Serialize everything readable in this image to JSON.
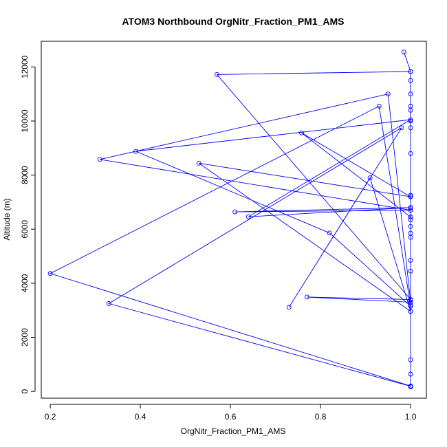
{
  "chart_data": {
    "type": "line",
    "title": "ATOM3 Northbound OrgNitr_Fraction_PM1_AMS",
    "xlabel": "OrgNitr_Fraction_PM1_AMS",
    "ylabel": "Altitude (m)",
    "xlim": [
      0.18,
      1.035
    ],
    "ylim": [
      -250,
      12950
    ],
    "xticks": [
      0.2,
      0.4,
      0.6,
      0.8,
      1.0
    ],
    "xtick_labels": [
      "0.2",
      "0.4",
      "0.6",
      "0.8",
      "1.0"
    ],
    "yticks": [
      0,
      2000,
      4000,
      6000,
      8000,
      10000,
      12000
    ],
    "ytick_labels": [
      "0",
      "2000",
      "4000",
      "6000",
      "8000",
      "10000",
      "12000"
    ],
    "grid": false,
    "colors": {
      "series": "#0000ff",
      "axis": "#000000"
    },
    "series": [
      {
        "points": [
          [
            1.0,
            170
          ],
          [
            1.0,
            640
          ],
          [
            1.0,
            1170
          ],
          [
            1.0,
            2960
          ],
          [
            1.0,
            3200
          ],
          [
            1.0,
            3380
          ],
          [
            1.0,
            4450
          ],
          [
            1.0,
            4850
          ],
          [
            1.0,
            5700
          ],
          [
            1.0,
            5850
          ],
          [
            1.0,
            6100
          ],
          [
            1.0,
            6350
          ],
          [
            1.0,
            6450
          ],
          [
            1.0,
            6780
          ],
          [
            1.0,
            7200
          ],
          [
            1.0,
            7250
          ],
          [
            1.0,
            8800
          ],
          [
            1.0,
            9750
          ],
          [
            1.0,
            10000
          ],
          [
            1.0,
            10400
          ],
          [
            1.0,
            10550
          ],
          [
            1.0,
            11000
          ],
          [
            1.0,
            11500
          ],
          [
            1.0,
            11830
          ],
          [
            0.985,
            12550
          ],
          [
            1.0,
            11830
          ],
          [
            0.57,
            11720
          ],
          [
            1.0,
            3400
          ],
          [
            0.77,
            3490
          ],
          [
            1.0,
            3300
          ],
          [
            0.95,
            11000
          ],
          [
            0.31,
            8580
          ],
          [
            1.0,
            6700
          ],
          [
            0.61,
            6640
          ],
          [
            1.0,
            6800
          ],
          [
            0.64,
            6460
          ],
          [
            1.0,
            10050
          ],
          [
            0.39,
            8880
          ],
          [
            0.82,
            5860
          ],
          [
            1.0,
            3150
          ],
          [
            0.93,
            10550
          ],
          [
            0.2,
            4360
          ],
          [
            1.0,
            200
          ],
          [
            1.0,
            190
          ],
          [
            0.33,
            3250
          ],
          [
            0.98,
            9750
          ],
          [
            0.73,
            3110
          ],
          [
            0.91,
            7900
          ],
          [
            1.0,
            2960
          ],
          [
            0.53,
            8440
          ],
          [
            1.0,
            7200
          ],
          [
            0.758,
            9560
          ],
          [
            1.0,
            6450
          ]
        ]
      }
    ]
  }
}
